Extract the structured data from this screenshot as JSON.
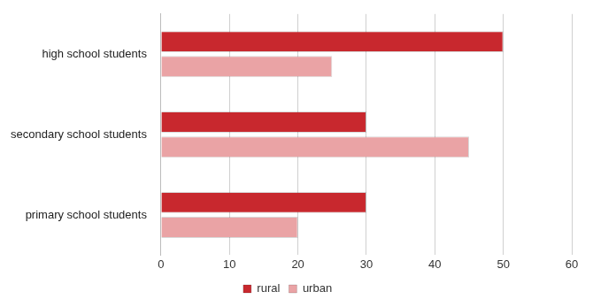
{
  "chart_data": {
    "type": "bar",
    "orientation": "horizontal",
    "categories": [
      "high school students",
      "secondary school students",
      "primary school students"
    ],
    "series": [
      {
        "name": "rural",
        "color": "#c8282e",
        "values": [
          50,
          30,
          30
        ]
      },
      {
        "name": "urban",
        "color": "#eaa3a5",
        "values": [
          25,
          45,
          20
        ]
      }
    ],
    "xlim": [
      0,
      60
    ],
    "xticks": [
      0,
      10,
      20,
      30,
      40,
      50,
      60
    ],
    "grid": true,
    "legend": "bottom"
  }
}
